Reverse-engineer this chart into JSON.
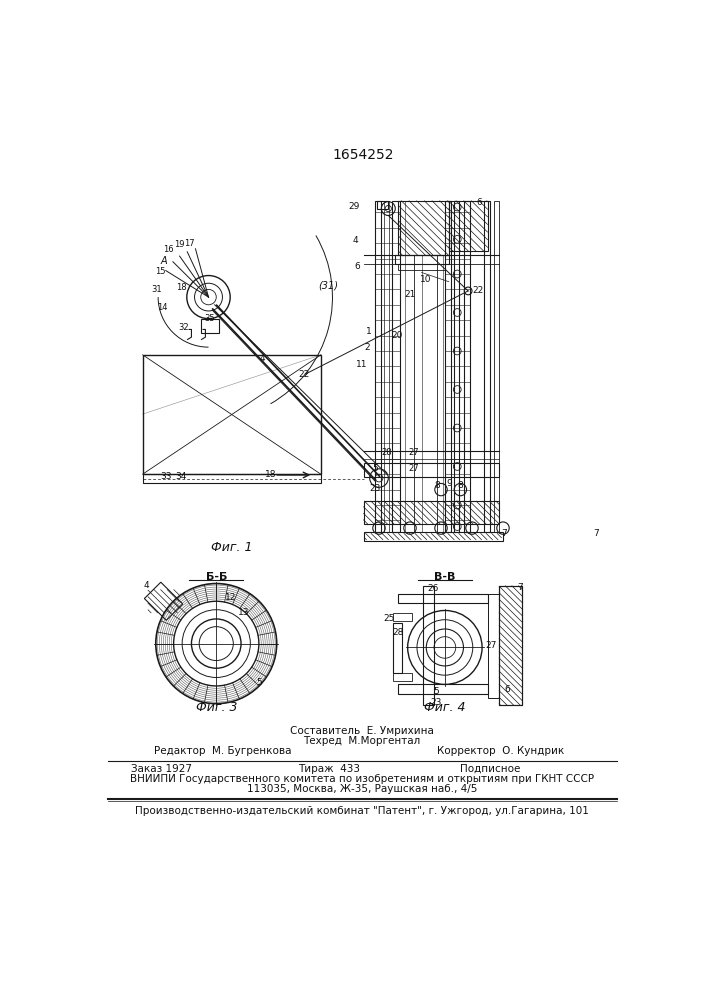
{
  "patent_number": "1654252",
  "fig1_caption": "Фиг. 1",
  "fig3_caption": "Фиг. 3",
  "fig4_caption": "Фиг. 4",
  "section_bb": "Б-Б",
  "section_vv": "В-В",
  "editor_label": "Редактор  М. Бугренкова",
  "composer_label": "Составитель  Е. Умрихина",
  "techred_label": "Техред  М.Моргентал",
  "corrector_label": "Корректор  О. Кундрик",
  "order_label": "Заказ 1927",
  "tirazh_label": "Тираж  433",
  "podpisnoe_label": "Подписное",
  "vniiipi_line1": "ВНИИПИ Государственного комитета по изобретениям и открытиям при ГКНТ СССР",
  "vniiipi_line2": "113035, Москва, Ж-35, Раушская наб., 4/5",
  "publisher_line": "Производственно-издательский комбинат \"Патент\", г. Ужгород, ул.Гагарина, 101",
  "bg_color": "#ffffff",
  "line_color": "#1a1a1a",
  "text_color": "#111111"
}
